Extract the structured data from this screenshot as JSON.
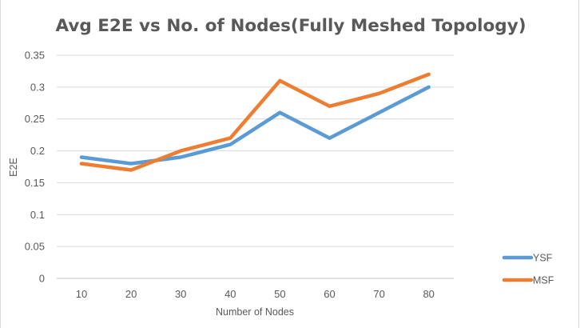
{
  "chart_data": {
    "type": "line",
    "title": "Avg E2E vs No. of Nodes(Fully Meshed Topology)",
    "xlabel": "Number of Nodes",
    "ylabel": "E2E",
    "categories": [
      "10",
      "20",
      "30",
      "40",
      "50",
      "60",
      "70",
      "80"
    ],
    "series": [
      {
        "name": "YSF",
        "color": "#5b9bd5",
        "values": [
          0.19,
          0.18,
          0.19,
          0.21,
          0.26,
          0.22,
          0.26,
          0.3
        ]
      },
      {
        "name": "MSF",
        "color": "#ed7d31",
        "values": [
          0.18,
          0.17,
          0.2,
          0.22,
          0.31,
          0.27,
          0.29,
          0.32
        ]
      }
    ],
    "ylim": [
      0,
      0.35
    ],
    "yticks": [
      "0",
      "0.05",
      "0.1",
      "0.15",
      "0.2",
      "0.25",
      "0.3",
      "0.35"
    ],
    "grid": true,
    "legend_position": "right"
  }
}
